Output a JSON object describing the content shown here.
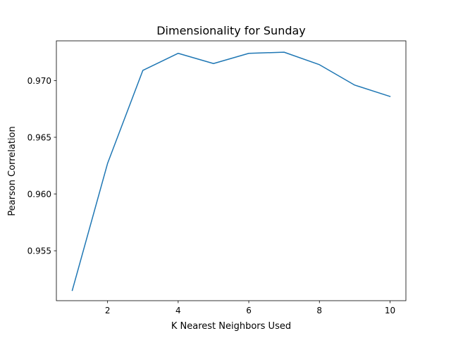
{
  "chart_data": {
    "type": "line",
    "title": "Dimensionality for Sunday",
    "xlabel": "K Nearest Neighbors Used",
    "ylabel": "Pearson Correlation",
    "x": [
      1,
      2,
      3,
      4,
      5,
      6,
      7,
      8,
      9,
      10
    ],
    "series": [
      {
        "values": [
          0.9515,
          0.9627,
          0.9709,
          0.9724,
          0.9715,
          0.9724,
          0.9725,
          0.9714,
          0.9696,
          0.9686
        ],
        "color": "#1f77b4"
      }
    ],
    "xlim": [
      0.55,
      10.45
    ],
    "ylim": [
      0.9506,
      0.9735
    ],
    "xticks": [
      2,
      4,
      6,
      8,
      10
    ],
    "xtick_labels": [
      "2",
      "4",
      "6",
      "8",
      "10"
    ],
    "yticks": [
      0.955,
      0.96,
      0.965,
      0.97
    ],
    "ytick_labels": [
      "0.955",
      "0.960",
      "0.965",
      "0.970"
    ],
    "grid": false
  }
}
